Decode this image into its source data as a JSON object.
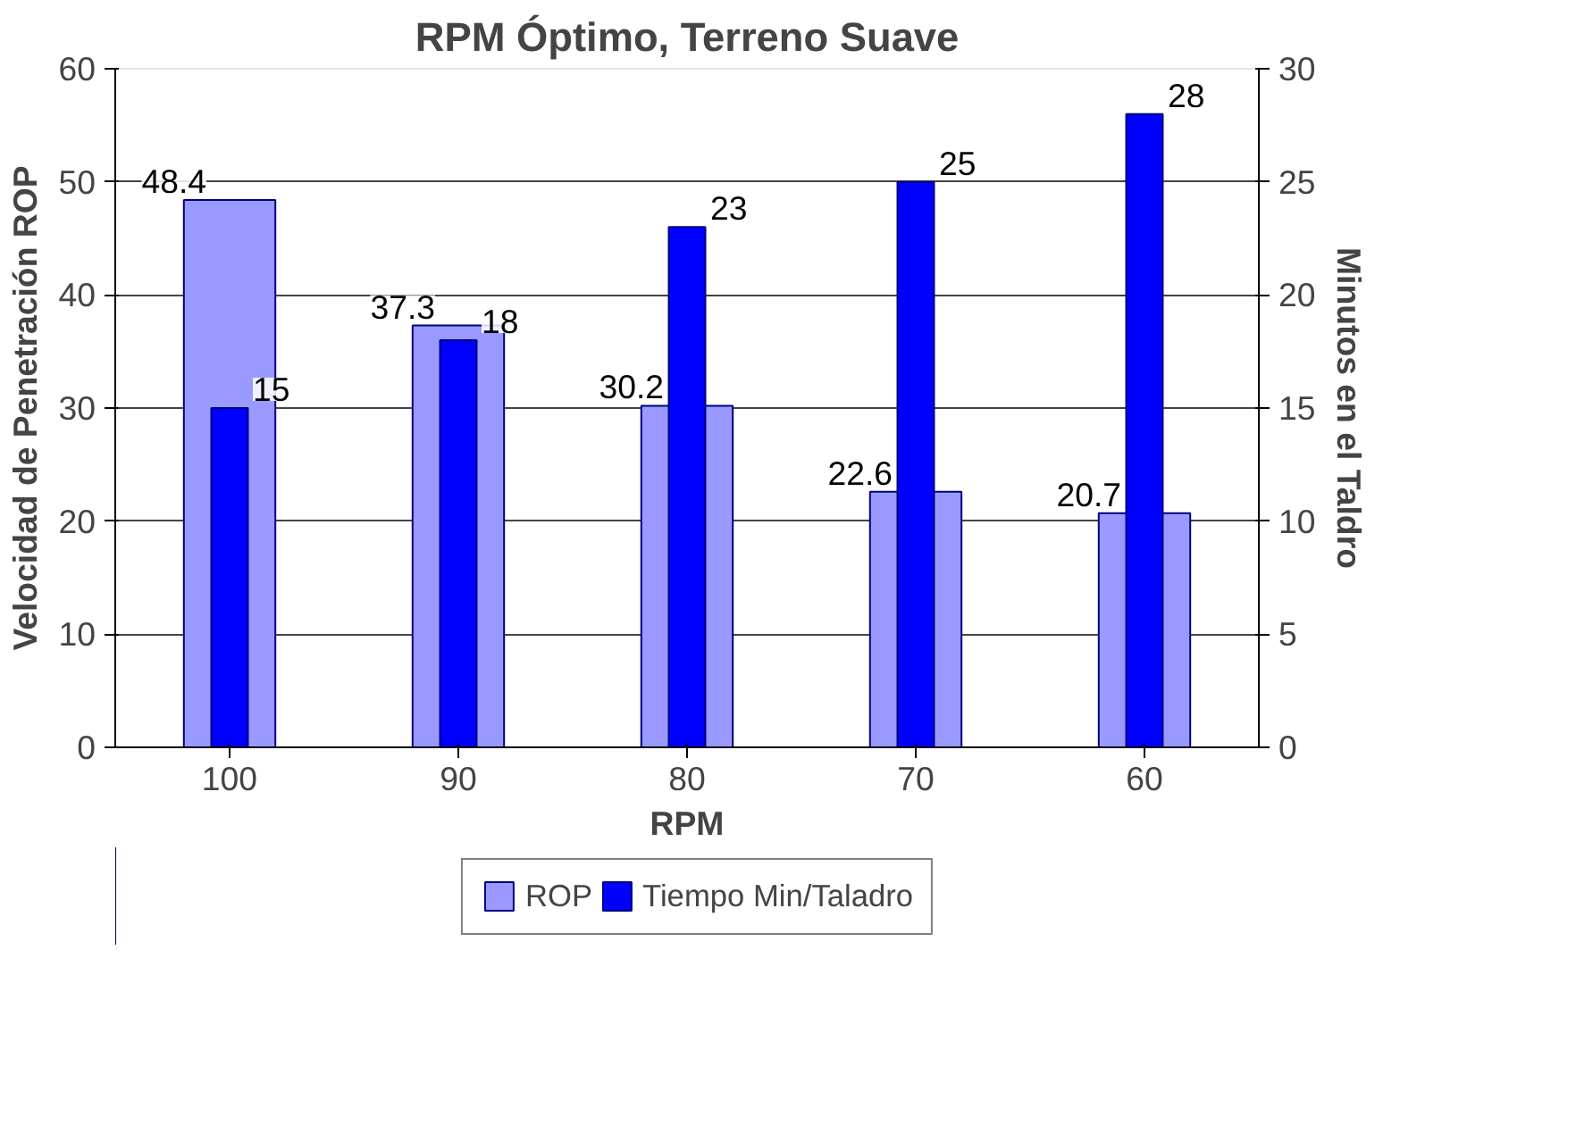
{
  "chart_data": {
    "type": "bar",
    "title": "RPM Óptimo, Terreno Suave",
    "xlabel": "RPM",
    "ylabel": "Velocidad de Penetración ROP",
    "y2label": "Minutos en el Taldro",
    "categories": [
      "100",
      "90",
      "80",
      "70",
      "60"
    ],
    "series": [
      {
        "name": "ROP",
        "color": "#9999ff",
        "values": [
          48.4,
          37.3,
          30.2,
          22.6,
          20.7
        ]
      },
      {
        "name": "Tiempo Min/Taladro",
        "color": "#0000ff",
        "values": [
          15,
          18,
          23,
          25,
          28
        ],
        "axis": "y2"
      }
    ],
    "ylim": [
      0,
      60
    ],
    "yticks": [
      0,
      10,
      20,
      30,
      40,
      50,
      60
    ],
    "y2lim": [
      0,
      30
    ],
    "y2ticks": [
      0,
      5,
      10,
      15,
      20,
      25,
      30
    ],
    "grid": "y",
    "legend": "bottom",
    "data_labels": true
  }
}
